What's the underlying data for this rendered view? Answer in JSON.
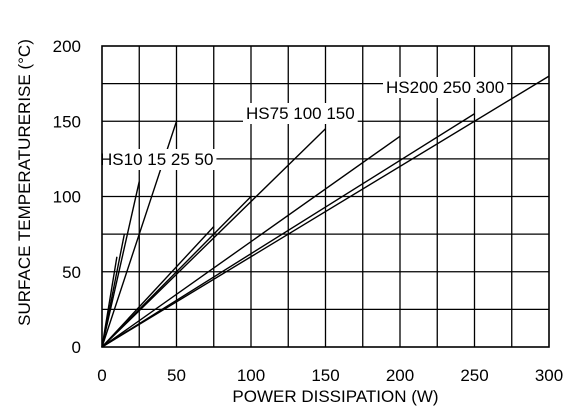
{
  "chart_data": {
    "type": "line",
    "title": "",
    "xlabel": "POWER DISSIPATION (W)",
    "ylabel": "SURFACE TEMPERATURERISE (°C)",
    "xlim": [
      0,
      300
    ],
    "ylim": [
      0,
      200
    ],
    "x_ticks": [
      0,
      50,
      100,
      150,
      200,
      250,
      300
    ],
    "y_ticks": [
      0,
      50,
      100,
      150,
      200
    ],
    "grid": true,
    "group_labels": [
      {
        "text": "HS10 15 25 50"
      },
      {
        "text": "HS75 100 150"
      },
      {
        "text": "HS200 250 300"
      }
    ],
    "series": [
      {
        "name": "HS10",
        "x": [
          0,
          10
        ],
        "y": [
          0,
          60
        ]
      },
      {
        "name": "HS15",
        "x": [
          0,
          15
        ],
        "y": [
          0,
          75
        ]
      },
      {
        "name": "HS25",
        "x": [
          0,
          25
        ],
        "y": [
          0,
          110
        ]
      },
      {
        "name": "HS50",
        "x": [
          0,
          50
        ],
        "y": [
          0,
          150
        ]
      },
      {
        "name": "HS75",
        "x": [
          0,
          75
        ],
        "y": [
          0,
          80
        ]
      },
      {
        "name": "HS100",
        "x": [
          0,
          100
        ],
        "y": [
          0,
          100
        ]
      },
      {
        "name": "HS150",
        "x": [
          0,
          150
        ],
        "y": [
          0,
          145
        ]
      },
      {
        "name": "HS200",
        "x": [
          0,
          200
        ],
        "y": [
          0,
          140
        ]
      },
      {
        "name": "HS250",
        "x": [
          0,
          250
        ],
        "y": [
          0,
          155
        ]
      },
      {
        "name": "HS300",
        "x": [
          0,
          300
        ],
        "y": [
          0,
          180
        ]
      }
    ]
  }
}
